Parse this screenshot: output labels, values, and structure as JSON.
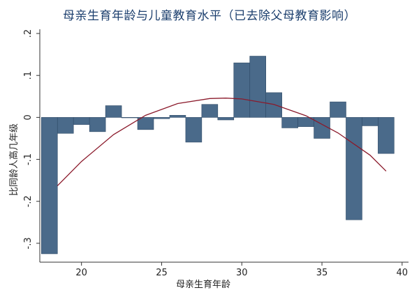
{
  "chart_data": {
    "type": "bar",
    "title": "母亲生育年龄与儿童教育水平（已去除父母教育影响）",
    "xlabel": "母亲生育年龄",
    "ylabel": "比同龄人高几年级",
    "xlim": [
      17.4,
      40.4
    ],
    "ylim": [
      -0.345,
      0.21
    ],
    "xticks": [
      20,
      25,
      30,
      35,
      40
    ],
    "yticks": [
      -0.3,
      -0.2,
      -0.1,
      0,
      0.1,
      0.2
    ],
    "ytick_labels": [
      "-.3",
      "-.2",
      "-.1",
      "0",
      ".1",
      ".2"
    ],
    "bar_width": 1,
    "x": [
      18,
      19,
      20,
      21,
      22,
      23,
      24,
      25,
      26,
      27,
      28,
      29,
      30,
      31,
      32,
      33,
      34,
      35,
      36,
      37,
      38,
      39
    ],
    "values": [
      -0.325,
      -0.038,
      -0.017,
      -0.034,
      0.028,
      0.0,
      -0.029,
      -0.003,
      0.005,
      -0.059,
      0.031,
      -0.006,
      0.13,
      0.146,
      0.059,
      -0.025,
      -0.022,
      -0.05,
      0.037,
      -0.244,
      -0.02,
      -0.086
    ],
    "fit": {
      "type": "quadratic",
      "points": [
        [
          18.5,
          -0.163
        ],
        [
          20,
          -0.105
        ],
        [
          22,
          -0.041
        ],
        [
          24,
          0.005
        ],
        [
          26,
          0.033
        ],
        [
          28,
          0.045
        ],
        [
          29,
          0.046
        ],
        [
          30,
          0.044
        ],
        [
          32,
          0.031
        ],
        [
          34,
          0.004
        ],
        [
          36,
          -0.037
        ],
        [
          38,
          -0.09
        ],
        [
          39,
          -0.128
        ]
      ]
    },
    "grid": false,
    "colors": {
      "bar_fill": "#4a6a8a",
      "bar_stroke": "#2f4a66",
      "fit_line": "#8b1a2b",
      "title": "#1c3f6e",
      "axis": "#333333"
    }
  }
}
